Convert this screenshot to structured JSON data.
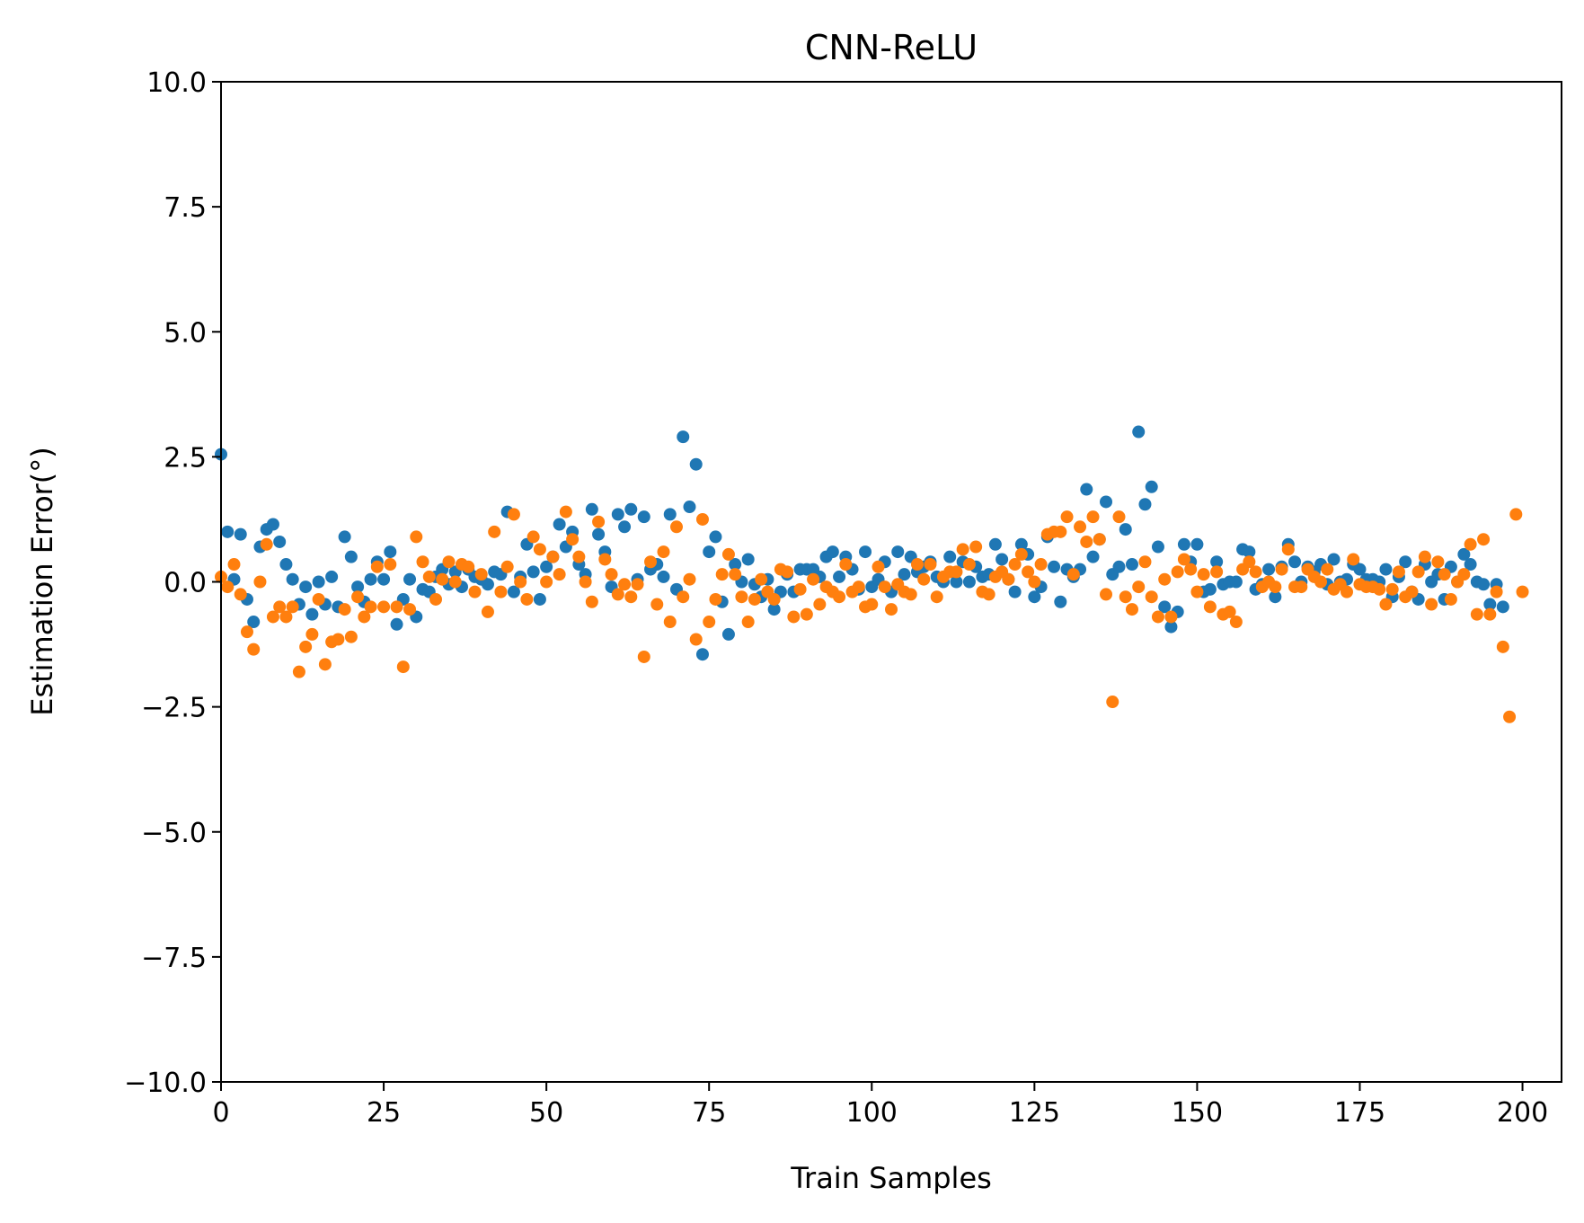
{
  "chart_data": {
    "type": "scatter",
    "title": "CNN-ReLU",
    "xlabel": "Train Samples",
    "ylabel": "Estimation Error(°)",
    "xlim": [
      0,
      206
    ],
    "ylim": [
      -10.0,
      10.0
    ],
    "xticks": [
      0,
      25,
      50,
      75,
      100,
      125,
      150,
      175,
      200
    ],
    "xtick_labels": [
      "0",
      "25",
      "50",
      "75",
      "100",
      "125",
      "150",
      "175",
      "200"
    ],
    "yticks": [
      -10.0,
      -7.5,
      -5.0,
      -2.5,
      0.0,
      2.5,
      5.0,
      7.5,
      10.0
    ],
    "ytick_labels": [
      "−10.0",
      "−7.5",
      "−5.0",
      "−2.5",
      "0.0",
      "2.5",
      "5.0",
      "7.5",
      "10.0"
    ],
    "grid": false,
    "series": [
      {
        "color": "#1f77b4",
        "values": [
          2.55,
          1.0,
          0.05,
          0.95,
          -0.35,
          -0.8,
          0.7,
          1.05,
          1.15,
          0.8,
          0.35,
          0.05,
          -0.45,
          -0.1,
          -0.65,
          0.0,
          -0.45,
          0.1,
          -0.5,
          0.9,
          0.5,
          -0.1,
          -0.4,
          0.05,
          0.4,
          0.05,
          0.6,
          -0.85,
          -0.35,
          0.05,
          -0.7,
          -0.15,
          -0.2,
          0.1,
          0.25,
          -0.05,
          0.2,
          -0.1,
          0.25,
          0.1,
          0.05,
          -0.05,
          0.2,
          0.15,
          1.4,
          -0.2,
          0.1,
          0.75,
          0.2,
          -0.35,
          0.3,
          0.5,
          1.15,
          0.7,
          1.0,
          0.35,
          0.15,
          1.45,
          0.95,
          0.6,
          -0.1,
          1.35,
          1.1,
          1.45,
          0.05,
          1.3,
          0.25,
          0.35,
          0.1,
          1.35,
          -0.15,
          2.9,
          1.5,
          2.35,
          -1.45,
          0.6,
          0.9,
          -0.4,
          -1.05,
          0.35,
          0.0,
          0.45,
          -0.05,
          -0.3,
          0.05,
          -0.55,
          -0.2,
          0.15,
          -0.2,
          0.25,
          0.25,
          0.25,
          0.1,
          0.5,
          0.6,
          0.1,
          0.5,
          0.25,
          -0.15,
          0.6,
          -0.1,
          0.05,
          0.4,
          -0.2,
          0.6,
          0.15,
          0.5,
          0.2,
          0.3,
          0.4,
          0.1,
          0.0,
          0.5,
          0.0,
          0.4,
          0.0,
          0.3,
          0.1,
          0.15,
          0.75,
          0.45,
          0.05,
          -0.2,
          0.75,
          0.55,
          -0.3,
          -0.1,
          0.9,
          0.3,
          -0.4,
          0.25,
          0.1,
          0.25,
          1.85,
          0.5,
          0.85,
          1.6,
          0.15,
          0.3,
          1.05,
          0.35,
          3.0,
          1.55,
          1.9,
          0.7,
          -0.5,
          -0.9,
          -0.6,
          0.75,
          0.4,
          0.75,
          -0.2,
          -0.15,
          0.4,
          -0.05,
          0.0,
          0.0,
          0.65,
          0.6,
          -0.15,
          -0.05,
          0.25,
          -0.3,
          0.3,
          0.75,
          0.4,
          0.0,
          0.3,
          0.2,
          0.35,
          -0.05,
          0.45,
          0.0,
          0.05,
          0.35,
          0.25,
          0.05,
          0.05,
          0.0,
          0.25,
          -0.3,
          0.1,
          0.4,
          -0.2,
          -0.35,
          0.35,
          0.0,
          0.15,
          -0.35,
          0.3,
          0.0,
          0.55,
          0.35,
          0.0,
          -0.05,
          -0.45,
          -0.05,
          -0.5
        ]
      },
      {
        "color": "#ff7f0e",
        "values": [
          0.1,
          -0.1,
          0.35,
          -0.25,
          -1.0,
          -1.35,
          0.0,
          0.75,
          -0.7,
          -0.5,
          -0.7,
          -0.5,
          -1.8,
          -1.3,
          -1.05,
          -0.35,
          -1.65,
          -1.2,
          -1.15,
          -0.55,
          -1.1,
          -0.3,
          -0.7,
          -0.5,
          0.3,
          -0.5,
          0.35,
          -0.5,
          -1.7,
          -0.55,
          0.9,
          0.4,
          0.1,
          -0.35,
          0.05,
          0.4,
          0.0,
          0.35,
          0.3,
          -0.2,
          0.15,
          -0.6,
          1.0,
          -0.2,
          0.3,
          1.35,
          0.0,
          -0.35,
          0.9,
          0.65,
          0.0,
          0.5,
          0.15,
          1.4,
          0.85,
          0.5,
          0.0,
          -0.4,
          1.2,
          0.45,
          0.15,
          -0.25,
          -0.05,
          -0.3,
          -0.05,
          -1.5,
          0.4,
          -0.45,
          0.6,
          -0.8,
          1.1,
          -0.3,
          0.05,
          -1.15,
          1.25,
          -0.8,
          -0.35,
          0.15,
          0.55,
          0.15,
          -0.3,
          -0.8,
          -0.35,
          0.05,
          -0.2,
          -0.35,
          0.25,
          0.2,
          -0.7,
          -0.15,
          -0.65,
          0.05,
          -0.45,
          -0.1,
          -0.2,
          -0.3,
          0.35,
          -0.2,
          -0.1,
          -0.5,
          -0.45,
          0.3,
          -0.1,
          -0.55,
          -0.05,
          -0.2,
          -0.25,
          0.35,
          0.05,
          0.35,
          -0.3,
          0.1,
          0.2,
          0.2,
          0.65,
          0.35,
          0.7,
          -0.2,
          -0.25,
          0.1,
          0.2,
          0.05,
          0.35,
          0.55,
          0.2,
          0.0,
          0.35,
          0.95,
          1.0,
          1.0,
          1.3,
          0.15,
          1.1,
          0.8,
          1.3,
          0.85,
          -0.25,
          -2.4,
          1.3,
          -0.3,
          -0.55,
          -0.1,
          0.4,
          -0.3,
          -0.7,
          0.05,
          -0.7,
          0.2,
          0.45,
          0.25,
          -0.2,
          0.15,
          -0.5,
          0.2,
          -0.65,
          -0.6,
          -0.8,
          0.25,
          0.4,
          0.2,
          -0.1,
          0.0,
          -0.1,
          0.25,
          0.65,
          -0.1,
          -0.1,
          0.25,
          0.1,
          0.0,
          0.25,
          -0.15,
          -0.05,
          -0.2,
          0.45,
          -0.05,
          -0.1,
          -0.1,
          -0.15,
          -0.45,
          -0.15,
          0.2,
          -0.3,
          -0.2,
          0.2,
          0.5,
          -0.45,
          0.4,
          0.15,
          -0.35,
          0.0,
          0.15,
          0.75,
          -0.65,
          0.85,
          -0.65,
          -0.2,
          -1.3,
          -2.7,
          1.35,
          -0.2
        ]
      }
    ]
  }
}
